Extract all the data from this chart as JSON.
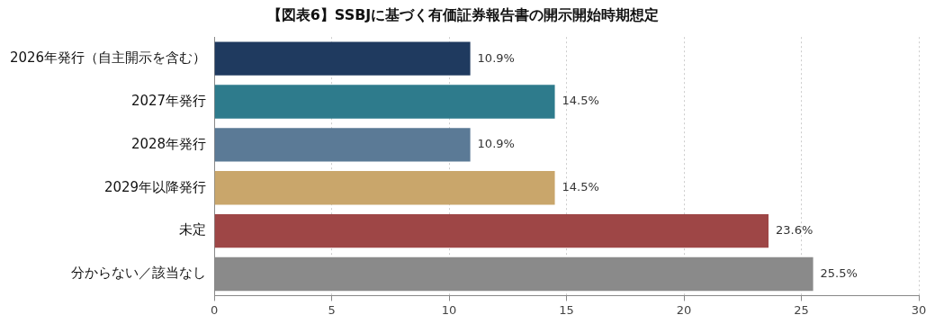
{
  "chart_data": {
    "type": "bar",
    "orientation": "horizontal",
    "title": "【図表6】SSBJに基づく有価証券報告書の開示開始時期想定",
    "categories": [
      "2026年発行（自主開示を含む）",
      "2027年発行",
      "2028年発行",
      "2029年以降発行",
      "未定",
      "分からない／該当なし"
    ],
    "values": [
      10.9,
      14.5,
      10.9,
      14.5,
      23.6,
      25.5
    ],
    "value_labels": [
      "10.9%",
      "14.5%",
      "10.9%",
      "14.5%",
      "23.6%",
      "25.5%"
    ],
    "colors": [
      "#1f3a5f",
      "#2e7b8c",
      "#5b7a96",
      "#c9a66b",
      "#9e4646",
      "#8a8a8a"
    ],
    "xlim": [
      0,
      30
    ],
    "xticks": [
      0,
      5,
      10,
      15,
      20,
      25,
      30
    ],
    "grid": "x",
    "legend": false
  }
}
